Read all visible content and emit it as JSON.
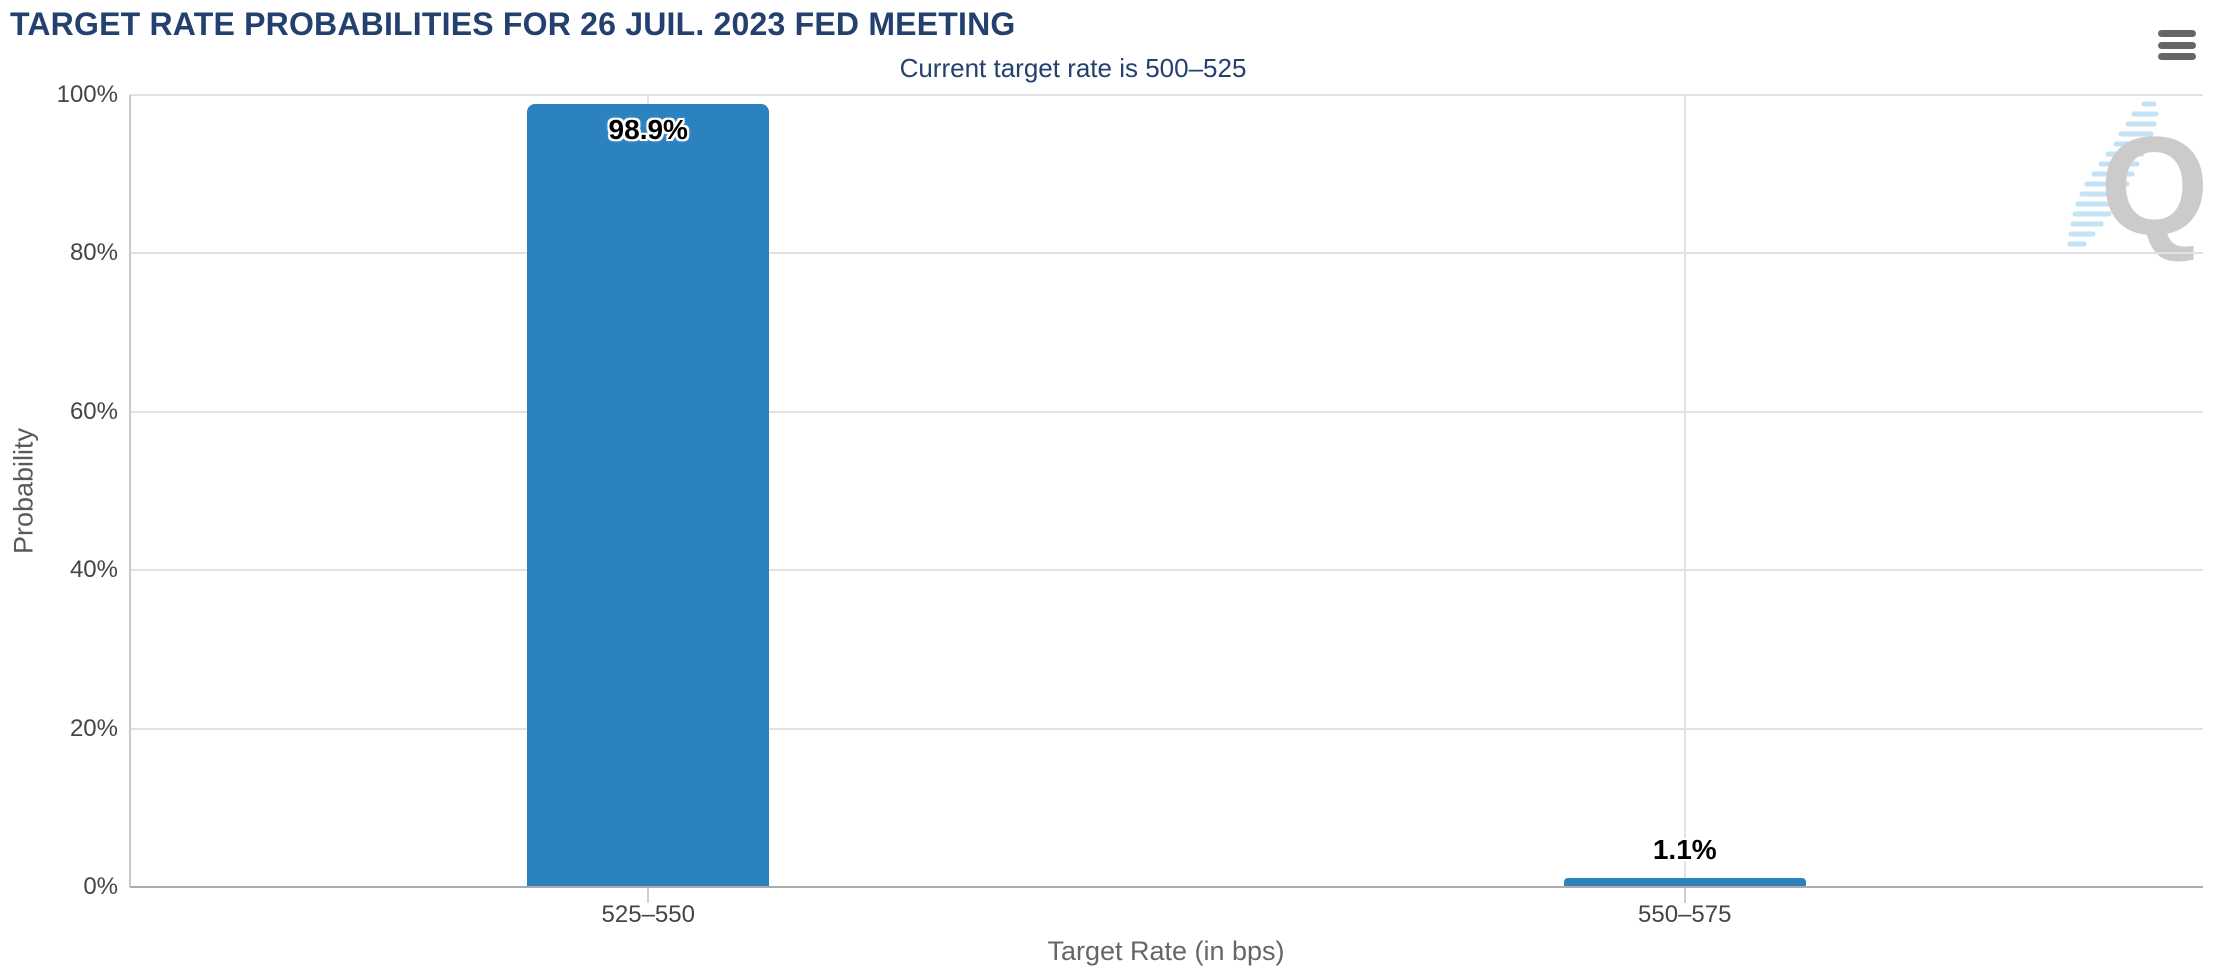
{
  "header": {
    "title": "TARGET RATE PROBABILITIES FOR 26 JUIL. 2023 FED MEETING",
    "subtitle": "Current target rate is 500–525",
    "menu_icon": "hamburger-menu-icon"
  },
  "watermark": {
    "letter": "Q"
  },
  "colors": {
    "title_navy": "#24406F",
    "bar_blue": "#2C82BF",
    "gridline": "#E2E2E2",
    "axis_line": "#ACACAC",
    "tick_label": "#454545",
    "axis_title": "#666666",
    "menu_icon": "#666666",
    "watermark_q": "#CBCBCB",
    "watermark_dashes": "#C3E2F3"
  },
  "chart_data": {
    "type": "bar",
    "title": "TARGET RATE PROBABILITIES FOR 26 JUIL. 2023 FED MEETING",
    "subtitle": "Current target rate is 500–525",
    "categories": [
      "525–550",
      "550–575"
    ],
    "values": [
      98.9,
      1.1
    ],
    "value_labels": [
      "98.9%",
      "1.1%"
    ],
    "xlabel": "Target Rate (in bps)",
    "ylabel": "Probability",
    "ylim": [
      0,
      100
    ],
    "ytick_labels": [
      "0%",
      "20%",
      "40%",
      "60%",
      "80%",
      "100%"
    ],
    "grid": true,
    "legend": false,
    "bar_color": "#2C82BF"
  }
}
